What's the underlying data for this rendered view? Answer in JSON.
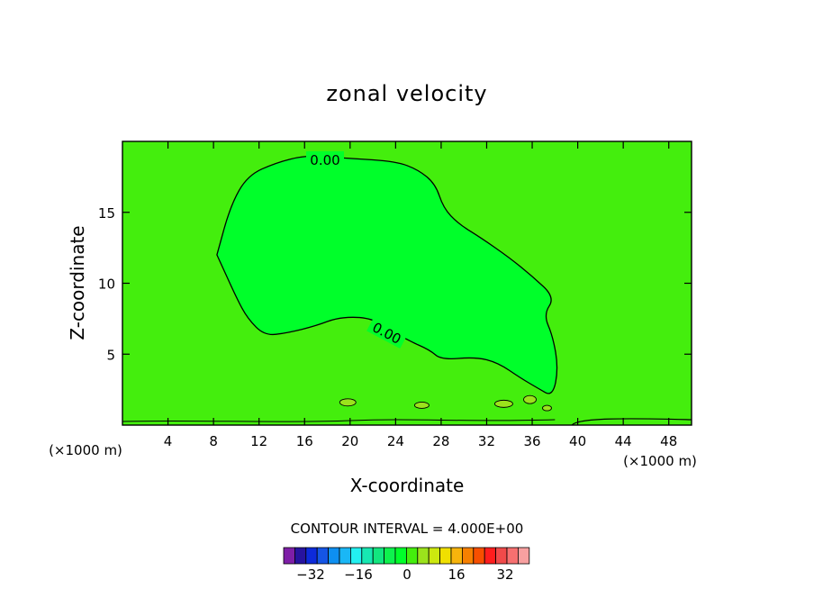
{
  "chart_data": {
    "type": "contour",
    "title": "zonal velocity",
    "xlabel": "X-coordinate",
    "ylabel": "Z-coordinate",
    "x_unit_left": "(×1000 m)",
    "x_unit_right": "(×1000 m)",
    "xlim": [
      0,
      50
    ],
    "ylim": [
      0,
      20
    ],
    "x_ticks": [
      4,
      8,
      12,
      16,
      20,
      24,
      28,
      32,
      36,
      40,
      44,
      48
    ],
    "x_tick_labels": [
      "4",
      "8",
      "12",
      "16",
      "20",
      "24",
      "28",
      "32",
      "36",
      "40",
      "44",
      "48"
    ],
    "y_ticks": [
      5,
      10,
      15
    ],
    "y_tick_labels": [
      "5",
      "10",
      "15"
    ],
    "contour_interval_text": "CONTOUR INTERVAL = 4.000E+00",
    "contour_labels": [
      "0.00",
      "0.00"
    ],
    "background_color": "#44ee0d",
    "region_fill_color": "#00ff2a",
    "main_region_outline": [
      [
        8.3,
        12.0
      ],
      [
        9.5,
        15.5
      ],
      [
        11.0,
        17.6
      ],
      [
        13.5,
        18.5
      ],
      [
        16.0,
        19.0
      ],
      [
        18.0,
        18.9
      ],
      [
        20.0,
        18.8
      ],
      [
        24.0,
        18.6
      ],
      [
        26.0,
        18.0
      ],
      [
        27.5,
        17.0
      ],
      [
        28.2,
        15.3
      ],
      [
        29.5,
        14.2
      ],
      [
        31.5,
        13.2
      ],
      [
        34.0,
        11.8
      ],
      [
        36.0,
        10.5
      ],
      [
        38.0,
        9.0
      ],
      [
        37.0,
        7.8
      ],
      [
        37.8,
        6.3
      ],
      [
        38.3,
        4.0
      ],
      [
        37.8,
        2.0
      ],
      [
        36.5,
        2.6
      ],
      [
        35.0,
        3.3
      ],
      [
        33.0,
        4.4
      ],
      [
        31.0,
        4.8
      ],
      [
        28.0,
        4.6
      ],
      [
        27.0,
        5.3
      ],
      [
        25.0,
        6.0
      ],
      [
        23.0,
        7.0
      ],
      [
        21.5,
        7.6
      ],
      [
        19.0,
        7.6
      ],
      [
        17.0,
        7.0
      ],
      [
        14.5,
        6.5
      ],
      [
        12.5,
        6.3
      ],
      [
        11.0,
        7.5
      ],
      [
        10.0,
        9.0
      ],
      [
        8.3,
        12.0
      ]
    ],
    "colorbar": {
      "colors": [
        "#7e1ea7",
        "#27139f",
        "#0d2ada",
        "#1555e5",
        "#0e8ff1",
        "#1ab7f6",
        "#23f0f0",
        "#17e8b2",
        "#12e67f",
        "#0ef24d",
        "#00ff2a",
        "#44ee0d",
        "#9be31c",
        "#cce80f",
        "#f0e000",
        "#f7b40c",
        "#f78000",
        "#f74f00",
        "#ff1d1d",
        "#f04a4a",
        "#f77070",
        "#f8a0a0"
      ],
      "tick_labels": [
        "−32",
        "−16",
        "0",
        "16",
        "32"
      ]
    }
  }
}
